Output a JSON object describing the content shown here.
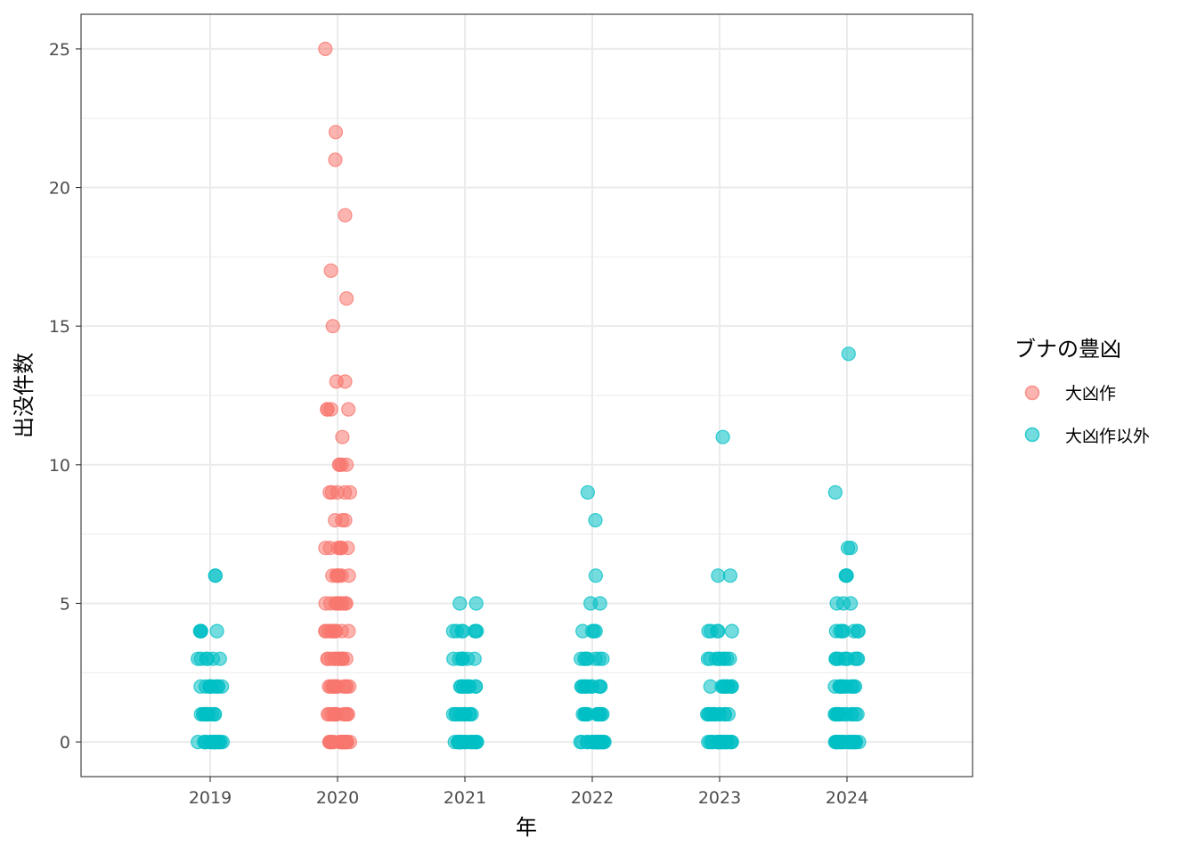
{
  "chart_data": {
    "type": "scatter",
    "xlabel": "年",
    "ylabel": "出没件数",
    "x_ticks": [
      "2019",
      "2020",
      "2021",
      "2022",
      "2023",
      "2024"
    ],
    "y_ticks": [
      "0",
      "5",
      "10",
      "15",
      "20",
      "25"
    ],
    "ylim": [
      -1.25,
      26.25
    ],
    "grid": true,
    "jitter": true,
    "legend": {
      "title": "ブナの豊凶",
      "position": "right",
      "entries": [
        {
          "label": "大凶作",
          "color": "#F8766D"
        },
        {
          "label": "大凶作以外",
          "color": "#00BFC4"
        }
      ]
    },
    "series": [
      {
        "name": "大凶作",
        "color": "#F8766D",
        "groups": [
          {
            "year": "2020",
            "values": [
              0,
              0,
              0,
              0,
              0,
              0,
              0,
              0,
              0,
              0,
              0,
              0,
              0,
              0,
              0,
              0,
              0,
              0,
              0,
              0,
              1,
              1,
              1,
              1,
              1,
              1,
              1,
              1,
              1,
              1,
              1,
              1,
              2,
              2,
              2,
              2,
              2,
              2,
              2,
              2,
              2,
              2,
              2,
              2,
              3,
              3,
              3,
              3,
              3,
              3,
              3,
              3,
              3,
              3,
              3,
              4,
              4,
              4,
              4,
              4,
              4,
              4,
              4,
              4,
              4,
              4,
              5,
              5,
              5,
              5,
              5,
              5,
              5,
              5,
              5,
              6,
              6,
              6,
              6,
              6,
              6,
              6,
              7,
              7,
              7,
              7,
              7,
              7,
              7,
              8,
              8,
              8,
              9,
              9,
              9,
              9,
              9,
              10,
              10,
              10,
              10,
              11,
              12,
              12,
              12,
              12,
              13,
              13,
              15,
              16,
              17,
              19,
              21,
              22,
              25
            ]
          }
        ]
      },
      {
        "name": "大凶作以外",
        "color": "#00BFC4",
        "groups": [
          {
            "year": "2019",
            "values": [
              0,
              0,
              0,
              0,
              0,
              0,
              0,
              0,
              0,
              0,
              0,
              0,
              0,
              0,
              0,
              0,
              0,
              0,
              1,
              1,
              1,
              1,
              1,
              1,
              1,
              1,
              1,
              1,
              1,
              2,
              2,
              2,
              2,
              2,
              2,
              2,
              2,
              2,
              2,
              3,
              3,
              3,
              3,
              3,
              3,
              4,
              4,
              4,
              4,
              4,
              6,
              6
            ]
          },
          {
            "year": "2021",
            "values": [
              0,
              0,
              0,
              0,
              0,
              0,
              0,
              0,
              0,
              0,
              0,
              0,
              0,
              0,
              0,
              0,
              0,
              0,
              0,
              0,
              1,
              1,
              1,
              1,
              1,
              1,
              1,
              1,
              1,
              1,
              1,
              2,
              2,
              2,
              2,
              2,
              2,
              2,
              2,
              2,
              2,
              3,
              3,
              3,
              3,
              3,
              3,
              3,
              4,
              4,
              4,
              4,
              4,
              4,
              4,
              5,
              5
            ]
          },
          {
            "year": "2022",
            "values": [
              0,
              0,
              0,
              0,
              0,
              0,
              0,
              0,
              0,
              0,
              0,
              0,
              0,
              0,
              0,
              0,
              0,
              0,
              0,
              0,
              0,
              0,
              1,
              1,
              1,
              1,
              1,
              1,
              1,
              1,
              1,
              1,
              1,
              1,
              2,
              2,
              2,
              2,
              2,
              2,
              2,
              2,
              2,
              2,
              2,
              3,
              3,
              3,
              3,
              3,
              3,
              3,
              4,
              4,
              4,
              4,
              5,
              5,
              6,
              8,
              9
            ]
          },
          {
            "year": "2023",
            "values": [
              0,
              0,
              0,
              0,
              0,
              0,
              0,
              0,
              0,
              0,
              0,
              0,
              0,
              0,
              0,
              0,
              0,
              0,
              0,
              0,
              1,
              1,
              1,
              1,
              1,
              1,
              1,
              1,
              1,
              1,
              1,
              1,
              2,
              2,
              2,
              2,
              2,
              2,
              2,
              2,
              2,
              2,
              2,
              3,
              3,
              3,
              3,
              3,
              3,
              3,
              3,
              3,
              4,
              4,
              4,
              4,
              4,
              6,
              6,
              11
            ]
          },
          {
            "year": "2024",
            "values": [
              0,
              0,
              0,
              0,
              0,
              0,
              0,
              0,
              0,
              0,
              0,
              0,
              0,
              0,
              0,
              0,
              0,
              0,
              0,
              0,
              0,
              0,
              1,
              1,
              1,
              1,
              1,
              1,
              1,
              1,
              1,
              1,
              1,
              1,
              1,
              2,
              2,
              2,
              2,
              2,
              2,
              2,
              2,
              2,
              2,
              2,
              2,
              3,
              3,
              3,
              3,
              3,
              3,
              3,
              3,
              3,
              3,
              4,
              4,
              4,
              4,
              4,
              4,
              4,
              5,
              5,
              5,
              6,
              6,
              6,
              7,
              7,
              9,
              14
            ]
          }
        ]
      }
    ]
  }
}
